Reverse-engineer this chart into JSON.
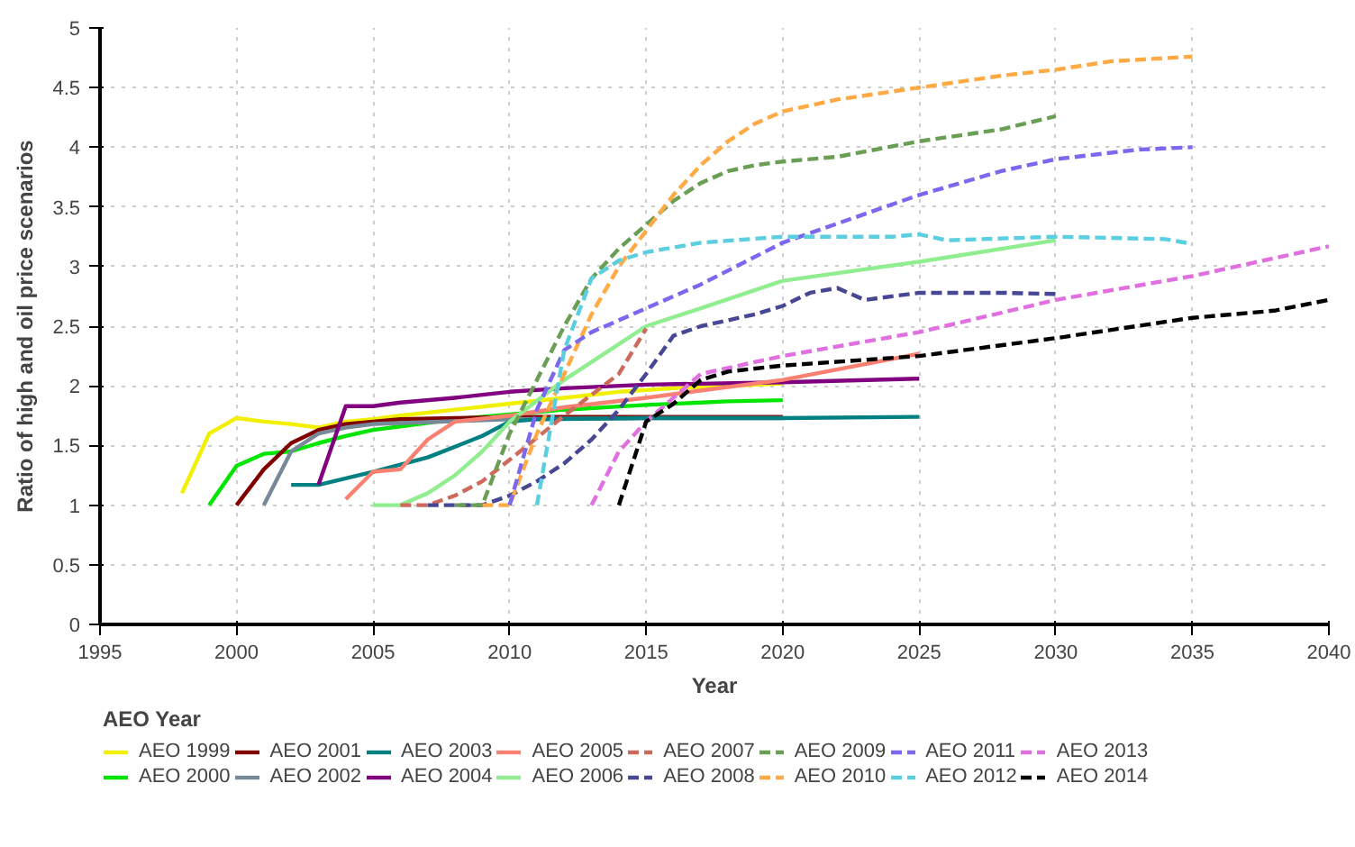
{
  "chart_data": {
    "type": "line",
    "xlabel": "Year",
    "ylabel": "Ratio of high and oil price scenarios",
    "legend_title": "AEO Year",
    "legend": "bottom",
    "grid": true,
    "xlim": [
      1995,
      2040
    ],
    "xticks": [
      1995,
      2000,
      2005,
      2010,
      2015,
      2020,
      2025,
      2030,
      2035,
      2040
    ],
    "ylim": [
      0,
      5
    ],
    "yticks": [
      0,
      0.5,
      1,
      1.5,
      2,
      2.5,
      3,
      3.5,
      4,
      4.5,
      5
    ],
    "series": [
      {
        "name": "AEO 1999",
        "color": "#f0f000",
        "line_style": "solid",
        "x": [
          1998,
          1999,
          2000,
          2001,
          2002,
          2003,
          2004,
          2005,
          2006,
          2008,
          2010,
          2012,
          2014,
          2016,
          2018,
          2020
        ],
        "values": [
          1.1,
          1.6,
          1.73,
          1.7,
          1.68,
          1.65,
          1.7,
          1.72,
          1.75,
          1.8,
          1.85,
          1.9,
          1.95,
          1.98,
          2.0,
          2.02
        ]
      },
      {
        "name": "AEO 2000",
        "color": "#00e600",
        "line_style": "solid",
        "x": [
          1999,
          2000,
          2001,
          2002,
          2003,
          2004,
          2005,
          2006,
          2008,
          2010,
          2012,
          2015,
          2018,
          2020
        ],
        "values": [
          1.0,
          1.33,
          1.43,
          1.45,
          1.52,
          1.58,
          1.63,
          1.66,
          1.72,
          1.76,
          1.8,
          1.84,
          1.87,
          1.88
        ]
      },
      {
        "name": "AEO 2001",
        "color": "#800000",
        "line_style": "solid",
        "x": [
          2000,
          2001,
          2002,
          2003,
          2004,
          2005,
          2006,
          2008,
          2010,
          2015,
          2020
        ],
        "values": [
          1.0,
          1.3,
          1.52,
          1.63,
          1.68,
          1.7,
          1.72,
          1.73,
          1.74,
          1.74,
          1.74
        ]
      },
      {
        "name": "AEO 2002",
        "color": "#778899",
        "line_style": "solid",
        "x": [
          2001,
          2002,
          2003,
          2004,
          2005,
          2010,
          2015,
          2020
        ],
        "values": [
          1.0,
          1.45,
          1.6,
          1.65,
          1.68,
          1.72,
          1.73,
          1.73
        ]
      },
      {
        "name": "AEO 2003",
        "color": "#008080",
        "line_style": "solid",
        "x": [
          2002,
          2003,
          2005,
          2007,
          2009,
          2010,
          2011,
          2015,
          2020,
          2025
        ],
        "values": [
          1.17,
          1.17,
          1.28,
          1.4,
          1.58,
          1.7,
          1.72,
          1.73,
          1.73,
          1.74
        ]
      },
      {
        "name": "AEO 2004",
        "color": "#800080",
        "line_style": "solid",
        "x": [
          2003,
          2004,
          2005,
          2006,
          2008,
          2010,
          2012,
          2015,
          2020,
          2025
        ],
        "values": [
          1.17,
          1.83,
          1.83,
          1.86,
          1.9,
          1.95,
          1.98,
          2.01,
          2.03,
          2.06
        ]
      },
      {
        "name": "AEO 2005",
        "color": "#fa8072",
        "line_style": "solid",
        "x": [
          2004,
          2005,
          2006,
          2007,
          2008,
          2010,
          2012,
          2015,
          2020,
          2025
        ],
        "values": [
          1.05,
          1.28,
          1.3,
          1.55,
          1.7,
          1.75,
          1.82,
          1.9,
          2.05,
          2.27
        ]
      },
      {
        "name": "AEO 2006",
        "color": "#90ee90",
        "line_style": "solid",
        "x": [
          2005,
          2006,
          2007,
          2008,
          2009,
          2010,
          2012,
          2014,
          2015,
          2017,
          2020,
          2025,
          2030
        ],
        "values": [
          1.0,
          1.0,
          1.1,
          1.25,
          1.45,
          1.7,
          2.05,
          2.35,
          2.5,
          2.65,
          2.88,
          3.04,
          3.22
        ]
      },
      {
        "name": "AEO 2007",
        "color": "#cd6a5c",
        "line_style": "dashed",
        "x": [
          2006,
          2007,
          2008,
          2009,
          2010,
          2012,
          2014,
          2015
        ],
        "values": [
          1.0,
          1.0,
          1.08,
          1.2,
          1.38,
          1.75,
          2.1,
          2.48
        ]
      },
      {
        "name": "AEO 2008",
        "color": "#474794",
        "line_style": "dashed",
        "x": [
          2007,
          2009,
          2010,
          2011,
          2012,
          2013,
          2014,
          2015,
          2016,
          2017,
          2018,
          2019,
          2020,
          2021,
          2022,
          2023,
          2025,
          2028,
          2030
        ],
        "values": [
          1.0,
          1.0,
          1.08,
          1.2,
          1.35,
          1.55,
          1.8,
          2.1,
          2.42,
          2.5,
          2.55,
          2.6,
          2.67,
          2.78,
          2.82,
          2.72,
          2.78,
          2.78,
          2.77
        ]
      },
      {
        "name": "AEO 2009",
        "color": "#6b9e55",
        "line_style": "dashed",
        "x": [
          2008,
          2009,
          2010,
          2011,
          2012,
          2013,
          2014,
          2015,
          2016,
          2017,
          2018,
          2019,
          2020,
          2022,
          2025,
          2028,
          2030
        ],
        "values": [
          1.0,
          1.0,
          1.6,
          2.05,
          2.5,
          2.9,
          3.15,
          3.35,
          3.55,
          3.7,
          3.8,
          3.85,
          3.88,
          3.92,
          4.05,
          4.15,
          4.26
        ]
      },
      {
        "name": "AEO 2010",
        "color": "#ffaa44",
        "line_style": "dashed",
        "x": [
          2009,
          2010,
          2011,
          2012,
          2013,
          2014,
          2015,
          2016,
          2017,
          2018,
          2019,
          2020,
          2022,
          2025,
          2028,
          2030,
          2032,
          2035
        ],
        "values": [
          1.0,
          1.0,
          1.6,
          2.1,
          2.6,
          3.0,
          3.3,
          3.6,
          3.85,
          4.05,
          4.2,
          4.3,
          4.4,
          4.5,
          4.6,
          4.65,
          4.72,
          4.76
        ]
      },
      {
        "name": "AEO 2011",
        "color": "#7b68ee",
        "line_style": "dashed",
        "x": [
          2010,
          2011,
          2012,
          2013,
          2014,
          2015,
          2017,
          2020,
          2025,
          2028,
          2030,
          2033,
          2035
        ],
        "values": [
          1.0,
          1.8,
          2.3,
          2.45,
          2.55,
          2.65,
          2.85,
          3.2,
          3.6,
          3.8,
          3.9,
          3.98,
          4.0
        ]
      },
      {
        "name": "AEO 2012",
        "color": "#5bcfe0",
        "line_style": "dashed",
        "x": [
          2011,
          2012,
          2013,
          2014,
          2015,
          2017,
          2020,
          2024,
          2025,
          2026,
          2030,
          2034,
          2035
        ],
        "values": [
          1.0,
          2.3,
          2.9,
          3.05,
          3.12,
          3.2,
          3.25,
          3.25,
          3.27,
          3.22,
          3.25,
          3.23,
          3.19
        ]
      },
      {
        "name": "AEO 2013",
        "color": "#e070e0",
        "line_style": "dashed",
        "x": [
          2013,
          2014,
          2015,
          2016,
          2017,
          2020,
          2025,
          2030,
          2035,
          2040
        ],
        "values": [
          1.0,
          1.45,
          1.7,
          1.9,
          2.1,
          2.25,
          2.45,
          2.72,
          2.92,
          3.17
        ]
      },
      {
        "name": "AEO 2014",
        "color": "#000000",
        "line_style": "dashed",
        "x": [
          2014,
          2015,
          2016,
          2017,
          2018,
          2020,
          2025,
          2030,
          2035,
          2038,
          2040
        ],
        "values": [
          1.0,
          1.7,
          1.85,
          2.05,
          2.12,
          2.17,
          2.25,
          2.4,
          2.57,
          2.63,
          2.72
        ]
      }
    ]
  }
}
